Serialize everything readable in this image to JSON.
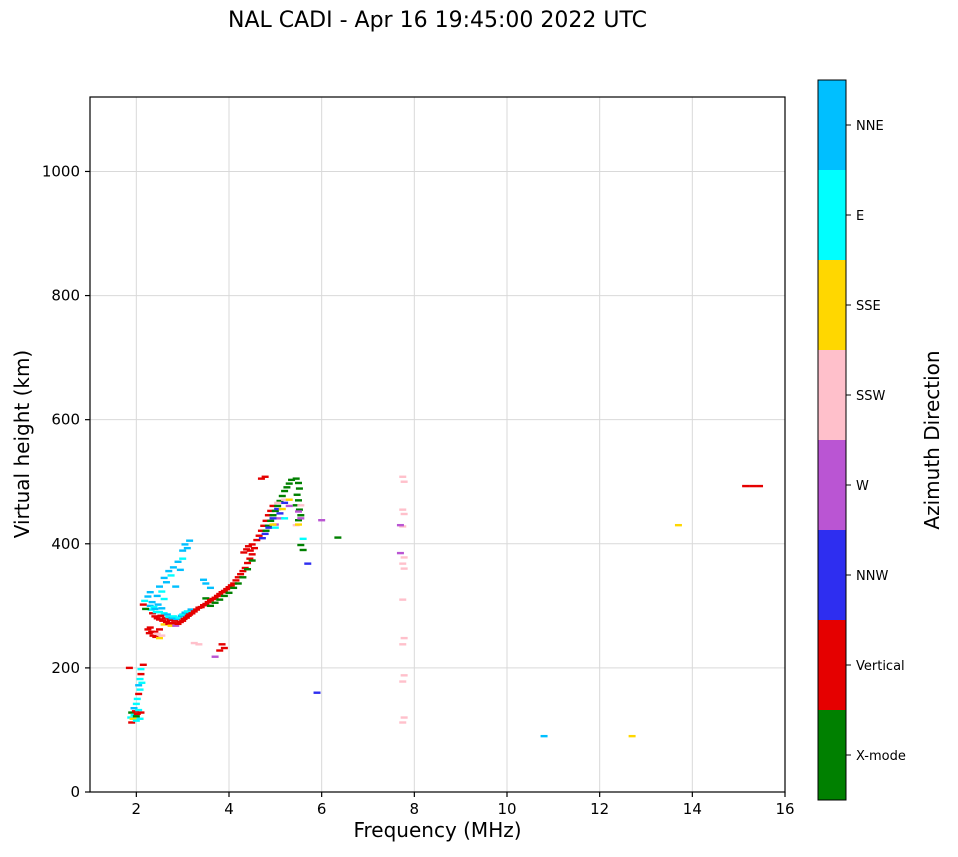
{
  "chart_data": {
    "type": "scatter",
    "title": "NAL CADI - Apr 16 19:45:00 2022 UTC",
    "xlabel": "Frequency (MHz)",
    "ylabel": "Virtual height (km)",
    "xlim": [
      1,
      16
    ],
    "ylim": [
      0,
      1120
    ],
    "xticks": [
      2,
      4,
      6,
      8,
      10,
      12,
      14,
      16
    ],
    "yticks": [
      0,
      200,
      400,
      600,
      800,
      1000
    ],
    "grid": true,
    "marker": "horizontal-dash",
    "colorbar": {
      "label": "Azimuth Direction",
      "position": "right",
      "categories": [
        {
          "code": "N",
          "label": "NNE",
          "color": "#00BFFF"
        },
        {
          "code": "E",
          "label": "E",
          "color": "#00FFFF"
        },
        {
          "code": "S",
          "label": "SSE",
          "color": "#FFD700"
        },
        {
          "code": "P",
          "label": "SSW",
          "color": "#FFC0CB"
        },
        {
          "code": "W",
          "label": "W",
          "color": "#BA55D3"
        },
        {
          "code": "B",
          "label": "NNW",
          "color": "#2E2EF0"
        },
        {
          "code": "V",
          "label": "Vertical",
          "color": "#E50000"
        },
        {
          "code": "X",
          "label": "X-mode",
          "color": "#008000"
        }
      ]
    },
    "points": [
      [
        1.85,
        200,
        "V"
      ],
      [
        1.88,
        120,
        "E"
      ],
      [
        1.9,
        112,
        "V"
      ],
      [
        1.9,
        128,
        "X"
      ],
      [
        1.93,
        118,
        "S"
      ],
      [
        1.95,
        124,
        "E"
      ],
      [
        1.95,
        135,
        "N"
      ],
      [
        1.98,
        130,
        "V"
      ],
      [
        2.0,
        115,
        "E"
      ],
      [
        2.0,
        122,
        "X"
      ],
      [
        2.0,
        142,
        "E"
      ],
      [
        2.02,
        126,
        "V"
      ],
      [
        2.02,
        150,
        "E"
      ],
      [
        2.05,
        132,
        "E"
      ],
      [
        2.05,
        158,
        "V"
      ],
      [
        2.05,
        172,
        "N"
      ],
      [
        2.08,
        118,
        "E"
      ],
      [
        2.08,
        165,
        "E"
      ],
      [
        2.08,
        182,
        "E"
      ],
      [
        2.1,
        128,
        "V"
      ],
      [
        2.1,
        190,
        "V"
      ],
      [
        2.12,
        176,
        "E"
      ],
      [
        2.1,
        198,
        "E"
      ],
      [
        2.15,
        205,
        "V"
      ],
      [
        2.25,
        262,
        "V"
      ],
      [
        2.28,
        256,
        "V"
      ],
      [
        2.3,
        265,
        "V"
      ],
      [
        2.33,
        258,
        "V"
      ],
      [
        2.36,
        252,
        "V"
      ],
      [
        2.4,
        258,
        "V"
      ],
      [
        2.42,
        250,
        "V"
      ],
      [
        2.45,
        255,
        "P"
      ],
      [
        2.5,
        248,
        "S"
      ],
      [
        2.55,
        252,
        "P"
      ],
      [
        2.5,
        262,
        "V"
      ],
      [
        2.3,
        300,
        "N"
      ],
      [
        2.32,
        294,
        "E"
      ],
      [
        2.34,
        306,
        "N"
      ],
      [
        2.35,
        288,
        "V"
      ],
      [
        2.38,
        298,
        "E"
      ],
      [
        2.4,
        283,
        "V"
      ],
      [
        2.4,
        295,
        "N"
      ],
      [
        2.43,
        290,
        "E"
      ],
      [
        2.45,
        280,
        "V"
      ],
      [
        2.47,
        302,
        "N"
      ],
      [
        2.5,
        278,
        "V"
      ],
      [
        2.5,
        290,
        "E"
      ],
      [
        2.53,
        284,
        "V"
      ],
      [
        2.55,
        296,
        "N"
      ],
      [
        2.57,
        276,
        "V"
      ],
      [
        2.6,
        288,
        "E"
      ],
      [
        2.6,
        270,
        "S"
      ],
      [
        2.62,
        280,
        "V"
      ],
      [
        2.65,
        274,
        "V"
      ],
      [
        2.67,
        286,
        "N"
      ],
      [
        2.7,
        271,
        "V"
      ],
      [
        2.7,
        282,
        "E"
      ],
      [
        2.73,
        277,
        "V"
      ],
      [
        2.75,
        268,
        "S"
      ],
      [
        2.77,
        280,
        "N"
      ],
      [
        2.8,
        272,
        "V"
      ],
      [
        2.8,
        283,
        "E"
      ],
      [
        2.83,
        276,
        "V"
      ],
      [
        2.85,
        268,
        "W"
      ],
      [
        2.87,
        279,
        "N"
      ],
      [
        2.9,
        271,
        "V"
      ],
      [
        2.92,
        281,
        "E"
      ],
      [
        2.95,
        274,
        "V"
      ],
      [
        2.97,
        284,
        "N"
      ],
      [
        3.0,
        276,
        "V"
      ],
      [
        3.0,
        286,
        "E"
      ],
      [
        3.03,
        279,
        "V"
      ],
      [
        3.05,
        289,
        "N"
      ],
      [
        3.08,
        281,
        "V"
      ],
      [
        3.1,
        291,
        "E"
      ],
      [
        3.12,
        284,
        "V"
      ],
      [
        3.15,
        286,
        "V"
      ],
      [
        3.18,
        294,
        "N"
      ],
      [
        3.2,
        288,
        "V"
      ],
      [
        3.25,
        291,
        "V"
      ],
      [
        3.3,
        294,
        "V"
      ],
      [
        3.35,
        297,
        "V"
      ],
      [
        2.2,
        295,
        "X"
      ],
      [
        2.15,
        302,
        "V"
      ],
      [
        2.18,
        308,
        "E"
      ],
      [
        2.25,
        315,
        "N"
      ],
      [
        2.3,
        322,
        "N"
      ],
      [
        2.45,
        316,
        "N"
      ],
      [
        2.5,
        331,
        "N"
      ],
      [
        2.55,
        323,
        "E"
      ],
      [
        2.6,
        345,
        "N"
      ],
      [
        2.65,
        338,
        "N"
      ],
      [
        2.7,
        356,
        "N"
      ],
      [
        2.75,
        349,
        "E"
      ],
      [
        2.8,
        362,
        "N"
      ],
      [
        2.85,
        331,
        "N"
      ],
      [
        2.9,
        371,
        "N"
      ],
      [
        2.95,
        358,
        "N"
      ],
      [
        3.0,
        376,
        "E"
      ],
      [
        3.0,
        389,
        "N"
      ],
      [
        3.05,
        399,
        "N"
      ],
      [
        3.1,
        393,
        "N"
      ],
      [
        3.15,
        405,
        "N"
      ],
      [
        2.6,
        311,
        "E"
      ],
      [
        3.4,
        298,
        "V"
      ],
      [
        3.45,
        301,
        "V"
      ],
      [
        3.45,
        342,
        "N"
      ],
      [
        3.5,
        303,
        "V"
      ],
      [
        3.5,
        312,
        "X"
      ],
      [
        3.5,
        336,
        "N"
      ],
      [
        3.55,
        306,
        "V"
      ],
      [
        3.6,
        300,
        "X"
      ],
      [
        3.6,
        309,
        "V"
      ],
      [
        3.6,
        329,
        "N"
      ],
      [
        3.65,
        311,
        "V"
      ],
      [
        3.7,
        305,
        "X"
      ],
      [
        3.7,
        313,
        "V"
      ],
      [
        3.75,
        316,
        "V"
      ],
      [
        3.8,
        310,
        "X"
      ],
      [
        3.8,
        319,
        "V"
      ],
      [
        3.85,
        322,
        "V"
      ],
      [
        3.9,
        316,
        "X"
      ],
      [
        3.9,
        324,
        "V"
      ],
      [
        3.95,
        327,
        "V"
      ],
      [
        4.0,
        321,
        "X"
      ],
      [
        4.0,
        330,
        "V"
      ],
      [
        4.05,
        333,
        "V"
      ],
      [
        4.1,
        329,
        "X"
      ],
      [
        4.1,
        336,
        "V"
      ],
      [
        4.15,
        341,
        "V"
      ],
      [
        4.2,
        336,
        "X"
      ],
      [
        4.2,
        346,
        "V"
      ],
      [
        4.25,
        351,
        "V"
      ],
      [
        4.3,
        346,
        "X"
      ],
      [
        4.3,
        356,
        "V"
      ],
      [
        4.35,
        361,
        "V"
      ],
      [
        4.4,
        359,
        "X"
      ],
      [
        4.4,
        369,
        "V"
      ],
      [
        4.45,
        376,
        "V"
      ],
      [
        4.5,
        373,
        "X"
      ],
      [
        4.5,
        383,
        "V"
      ],
      [
        4.32,
        386,
        "V"
      ],
      [
        4.38,
        391,
        "V"
      ],
      [
        4.42,
        396,
        "V"
      ],
      [
        4.46,
        389,
        "V"
      ],
      [
        4.5,
        399,
        "V"
      ],
      [
        4.55,
        393,
        "V"
      ],
      [
        3.7,
        218,
        "W"
      ],
      [
        3.25,
        240,
        "P"
      ],
      [
        3.35,
        238,
        "P"
      ],
      [
        3.85,
        238,
        "V"
      ],
      [
        3.9,
        232,
        "V"
      ],
      [
        3.8,
        228,
        "V"
      ],
      [
        4.6,
        406,
        "V"
      ],
      [
        4.65,
        413,
        "V"
      ],
      [
        4.7,
        421,
        "V"
      ],
      [
        4.75,
        429,
        "V"
      ],
      [
        4.8,
        437,
        "V"
      ],
      [
        4.85,
        446,
        "V"
      ],
      [
        4.9,
        453,
        "V"
      ],
      [
        4.95,
        461,
        "V"
      ],
      [
        4.7,
        505,
        "V"
      ],
      [
        4.78,
        508,
        "V"
      ],
      [
        4.8,
        421,
        "X"
      ],
      [
        4.85,
        429,
        "X"
      ],
      [
        4.9,
        437,
        "X"
      ],
      [
        4.95,
        446,
        "X"
      ],
      [
        5.0,
        453,
        "X"
      ],
      [
        5.05,
        461,
        "X"
      ],
      [
        5.1,
        469,
        "X"
      ],
      [
        5.15,
        477,
        "X"
      ],
      [
        5.2,
        485,
        "X"
      ],
      [
        5.25,
        491,
        "X"
      ],
      [
        5.3,
        497,
        "X"
      ],
      [
        5.35,
        503,
        "X"
      ],
      [
        5.45,
        505,
        "X"
      ],
      [
        5.5,
        498,
        "X"
      ],
      [
        5.52,
        489,
        "X"
      ],
      [
        5.47,
        479,
        "X"
      ],
      [
        5.5,
        470,
        "X"
      ],
      [
        5.45,
        462,
        "X"
      ],
      [
        5.52,
        455,
        "X"
      ],
      [
        5.55,
        446,
        "X"
      ],
      [
        5.5,
        438,
        "X"
      ],
      [
        5.55,
        398,
        "X"
      ],
      [
        5.6,
        390,
        "X"
      ],
      [
        6.35,
        410,
        "X"
      ],
      [
        4.72,
        409,
        "B"
      ],
      [
        4.78,
        416,
        "B"
      ],
      [
        4.86,
        426,
        "B"
      ],
      [
        4.95,
        441,
        "B"
      ],
      [
        5.05,
        456,
        "B"
      ],
      [
        5.1,
        449,
        "B"
      ],
      [
        5.2,
        466,
        "B"
      ],
      [
        5.7,
        368,
        "B"
      ],
      [
        5.9,
        160,
        "B"
      ],
      [
        5.0,
        431,
        "W"
      ],
      [
        5.1,
        441,
        "W"
      ],
      [
        5.3,
        461,
        "W"
      ],
      [
        5.5,
        452,
        "W"
      ],
      [
        5.55,
        441,
        "W"
      ],
      [
        6.0,
        438,
        "W"
      ],
      [
        5.05,
        466,
        "P"
      ],
      [
        5.2,
        471,
        "P"
      ],
      [
        5.55,
        462,
        "P"
      ],
      [
        5.45,
        430,
        "P"
      ],
      [
        4.95,
        431,
        "S"
      ],
      [
        5.15,
        456,
        "S"
      ],
      [
        5.3,
        471,
        "S"
      ],
      [
        5.5,
        431,
        "S"
      ],
      [
        5.0,
        426,
        "E"
      ],
      [
        5.2,
        441,
        "E"
      ],
      [
        5.6,
        408,
        "E"
      ],
      [
        7.75,
        112,
        "P"
      ],
      [
        7.78,
        120,
        "P"
      ],
      [
        7.75,
        178,
        "P"
      ],
      [
        7.78,
        188,
        "P"
      ],
      [
        7.75,
        238,
        "P"
      ],
      [
        7.78,
        248,
        "P"
      ],
      [
        7.75,
        310,
        "P"
      ],
      [
        7.78,
        360,
        "P"
      ],
      [
        7.75,
        368,
        "P"
      ],
      [
        7.78,
        378,
        "P"
      ],
      [
        7.75,
        428,
        "P"
      ],
      [
        7.78,
        448,
        "P"
      ],
      [
        7.75,
        455,
        "P"
      ],
      [
        7.78,
        500,
        "P"
      ],
      [
        7.75,
        508,
        "P"
      ],
      [
        7.7,
        385,
        "W"
      ],
      [
        7.7,
        430,
        "W"
      ],
      [
        10.8,
        90,
        "N"
      ],
      [
        12.7,
        90,
        "S"
      ],
      [
        13.7,
        430,
        "S"
      ],
      [
        15.15,
        493,
        "V"
      ],
      [
        15.3,
        493,
        "V"
      ],
      [
        15.45,
        493,
        "V"
      ]
    ]
  }
}
